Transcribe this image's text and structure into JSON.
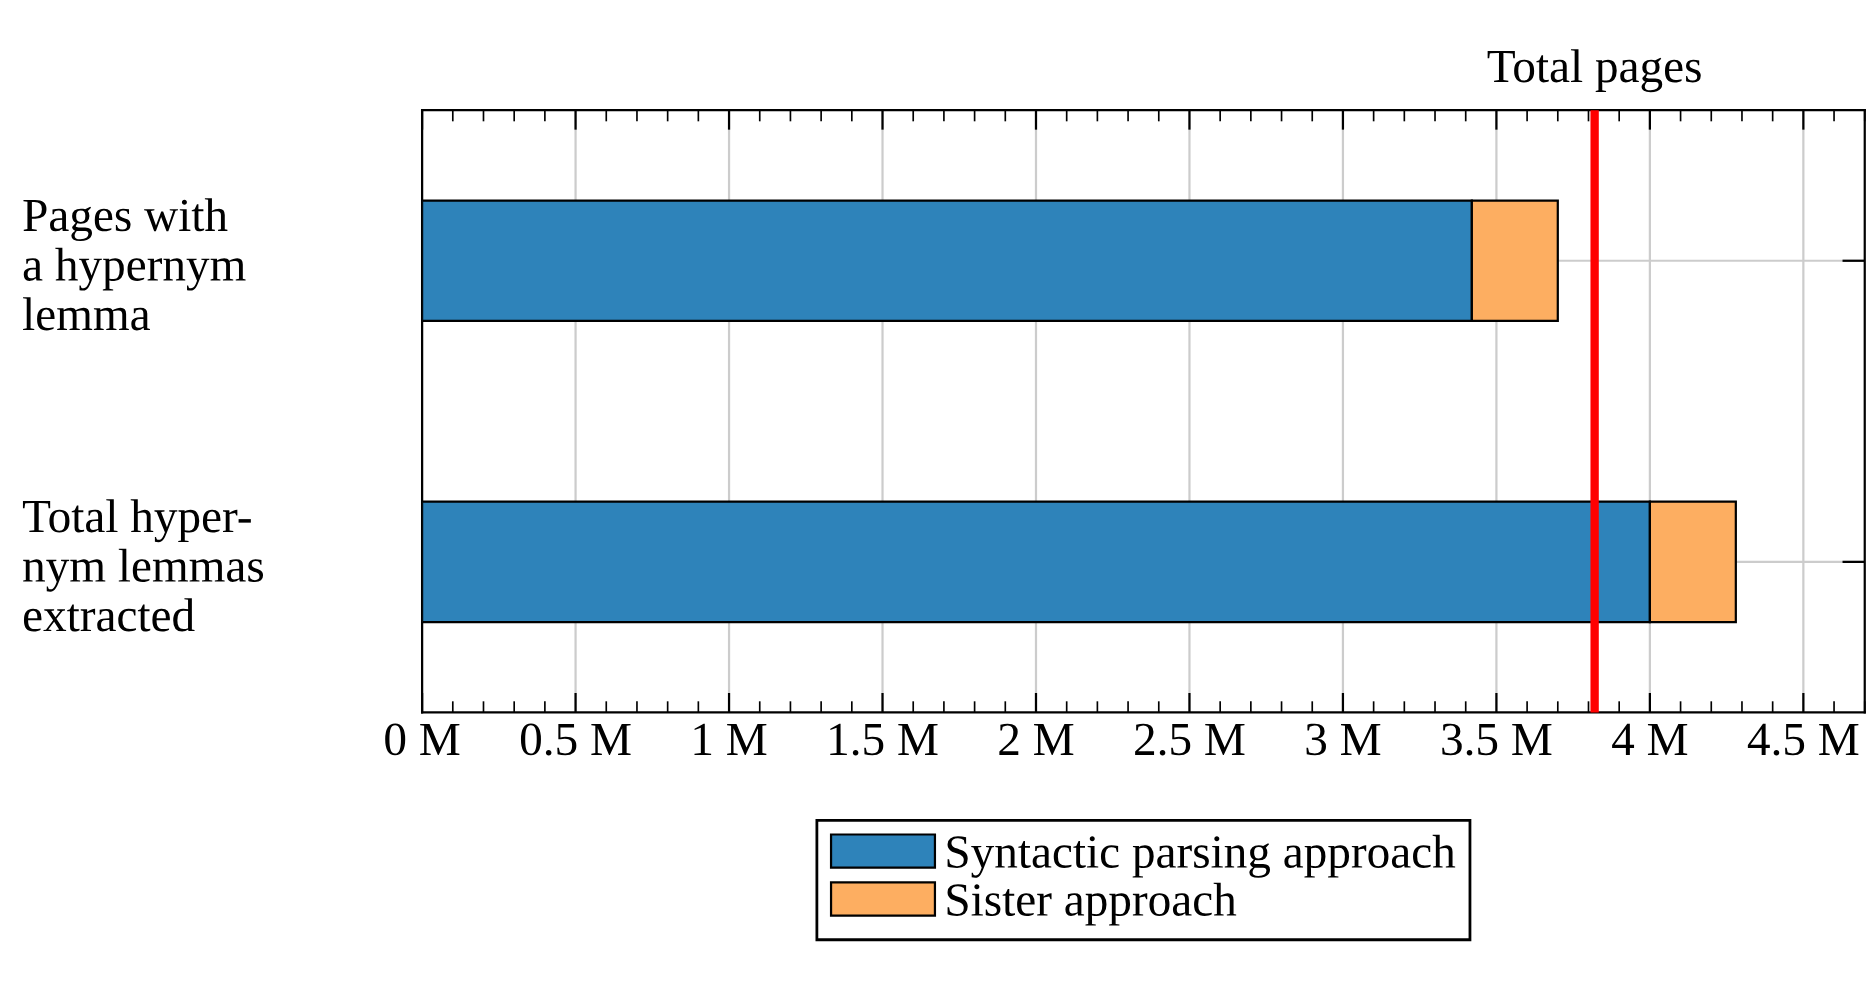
{
  "chart_data": {
    "type": "bar",
    "orientation": "horizontal",
    "stacked": true,
    "categories": [
      "Pages with\na hypernym\nlemma",
      "Total hyper-\nnym lemmas\nextracted"
    ],
    "series": [
      {
        "name": "Syntactic parsing approach",
        "color": "#2e83ba",
        "values": [
          3.42,
          4.0
        ]
      },
      {
        "name": "Sister approach",
        "color": "#fdae61",
        "values": [
          0.28,
          0.28
        ]
      }
    ],
    "xlim": [
      0,
      4.7
    ],
    "xticks": [
      {
        "value": 0,
        "label": "0 M"
      },
      {
        "value": 0.5,
        "label": "0.5 M"
      },
      {
        "value": 1,
        "label": "1 M"
      },
      {
        "value": 1.5,
        "label": "1.5 M"
      },
      {
        "value": 2,
        "label": "2 M"
      },
      {
        "value": 2.5,
        "label": "2.5 M"
      },
      {
        "value": 3,
        "label": "3 M"
      },
      {
        "value": 3.5,
        "label": "3.5 M"
      },
      {
        "value": 4,
        "label": "4 M"
      },
      {
        "value": 4.5,
        "label": "4.5 M"
      }
    ],
    "ref_lines": [
      {
        "axis": "x",
        "value": 3.82,
        "label": "Total pages",
        "color": "#ff0000"
      }
    ],
    "grid": true,
    "legend": "bottom"
  }
}
